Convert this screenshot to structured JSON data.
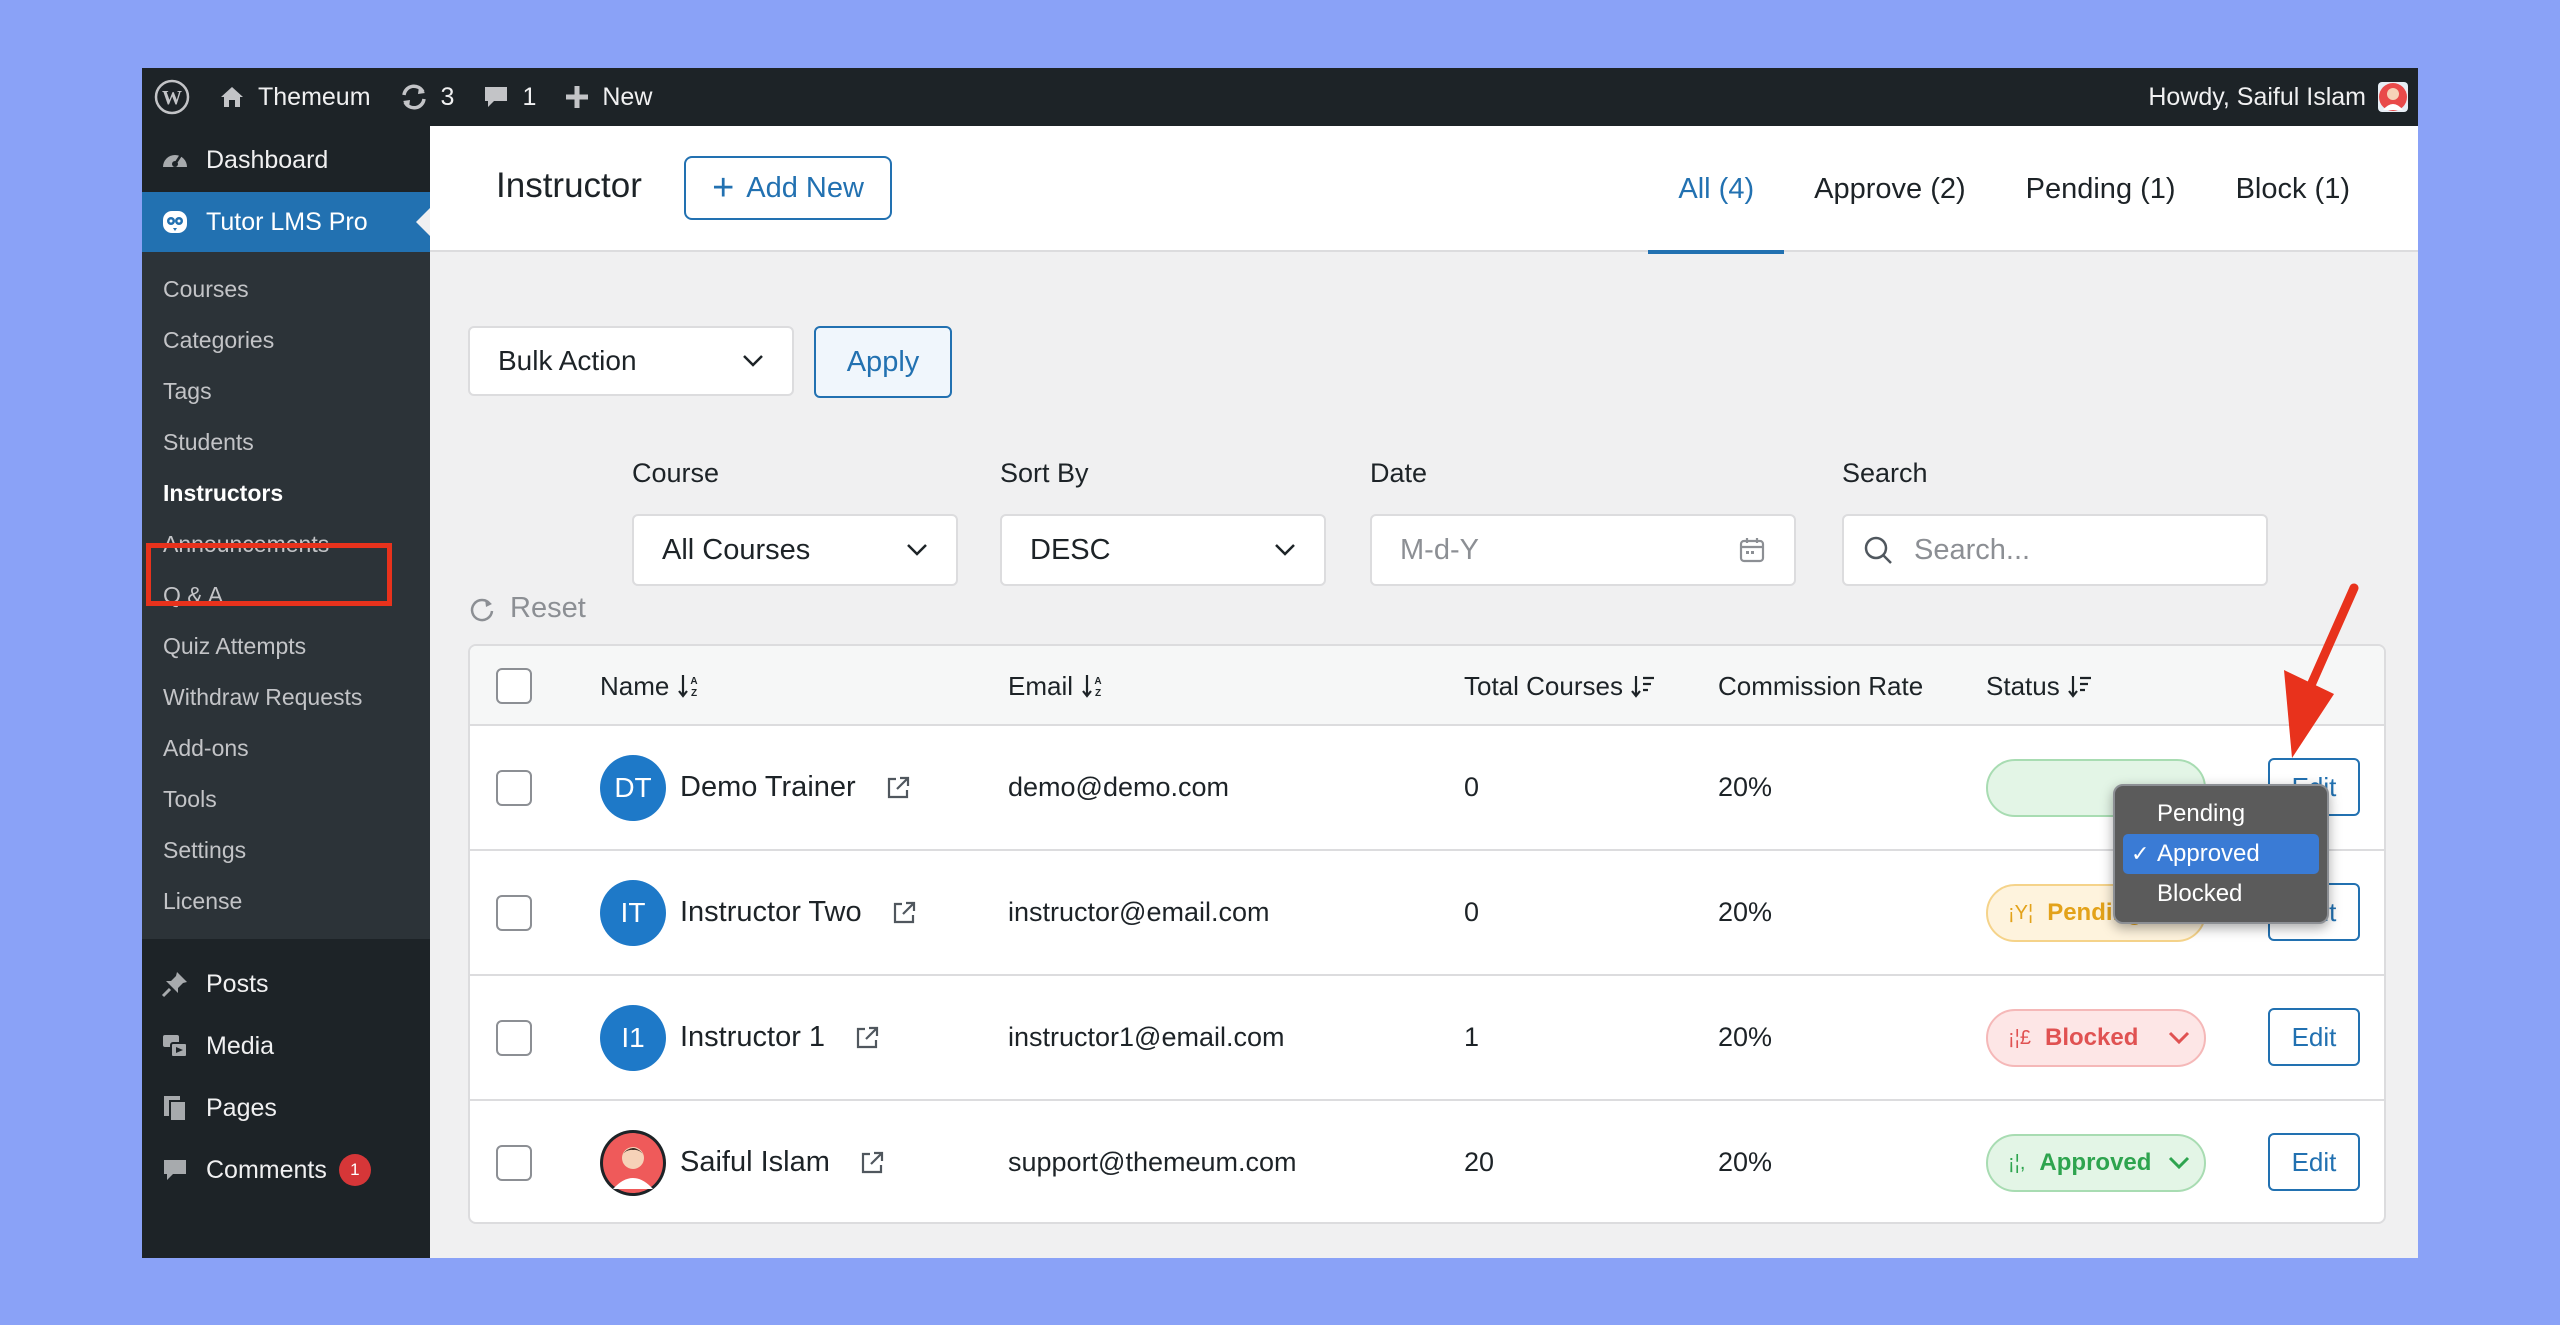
{
  "admin_bar": {
    "site_name": "Themeum",
    "updates_count": "3",
    "comments_count": "1",
    "new_label": "New",
    "howdy": "Howdy, Saiful Islam"
  },
  "sidebar": {
    "dashboard": "Dashboard",
    "tutor": "Tutor LMS Pro",
    "submenu": [
      "Courses",
      "Categories",
      "Tags",
      "Students",
      "Instructors",
      "Announcements",
      "Q & A",
      "Quiz Attempts",
      "Withdraw Requests",
      "Add-ons",
      "Tools",
      "Settings",
      "License"
    ],
    "posts": "Posts",
    "media": "Media",
    "pages": "Pages",
    "comments": "Comments",
    "comments_badge": "1"
  },
  "header": {
    "title": "Instructor",
    "add_new": "Add New",
    "tabs": [
      "All (4)",
      "Approve (2)",
      "Pending (1)",
      "Block (1)"
    ]
  },
  "filters": {
    "bulk_action": "Bulk Action",
    "apply": "Apply",
    "reset": "Reset",
    "course_label": "Course",
    "course_value": "All Courses",
    "sort_label": "Sort By",
    "sort_value": "DESC",
    "date_label": "Date",
    "date_placeholder": "M-d-Y",
    "search_label": "Search",
    "search_placeholder": "Search..."
  },
  "table": {
    "columns": {
      "name": "Name",
      "email": "Email",
      "total_courses": "Total Courses",
      "commission": "Commission Rate",
      "status": "Status"
    },
    "edit_label": "Edit",
    "rows": [
      {
        "initials": "DT",
        "name": "Demo Trainer",
        "email": "demo@demo.com",
        "courses": "0",
        "commission": "20%",
        "status": "Approved"
      },
      {
        "initials": "IT",
        "name": "Instructor Two",
        "email": "instructor@email.com",
        "courses": "0",
        "commission": "20%",
        "status": "Pending",
        "status_icon": "¡Y¦"
      },
      {
        "initials": "I1",
        "name": "Instructor 1",
        "email": "instructor1@email.com",
        "courses": "1",
        "commission": "20%",
        "status": "Blocked",
        "status_icon": "¡¦£"
      },
      {
        "initials": "",
        "name": "Saiful Islam",
        "email": "support@themeum.com",
        "courses": "20",
        "commission": "20%",
        "status": "Approved",
        "status_icon": "¡¦,"
      }
    ]
  },
  "status_dropdown": {
    "options": [
      "Pending",
      "Approved",
      "Blocked"
    ],
    "selected": "Approved",
    "check": "✓"
  },
  "colors": {
    "accent": "#2271b1",
    "sidebar_bg": "#1d2327",
    "annotation": "#e8321c"
  }
}
